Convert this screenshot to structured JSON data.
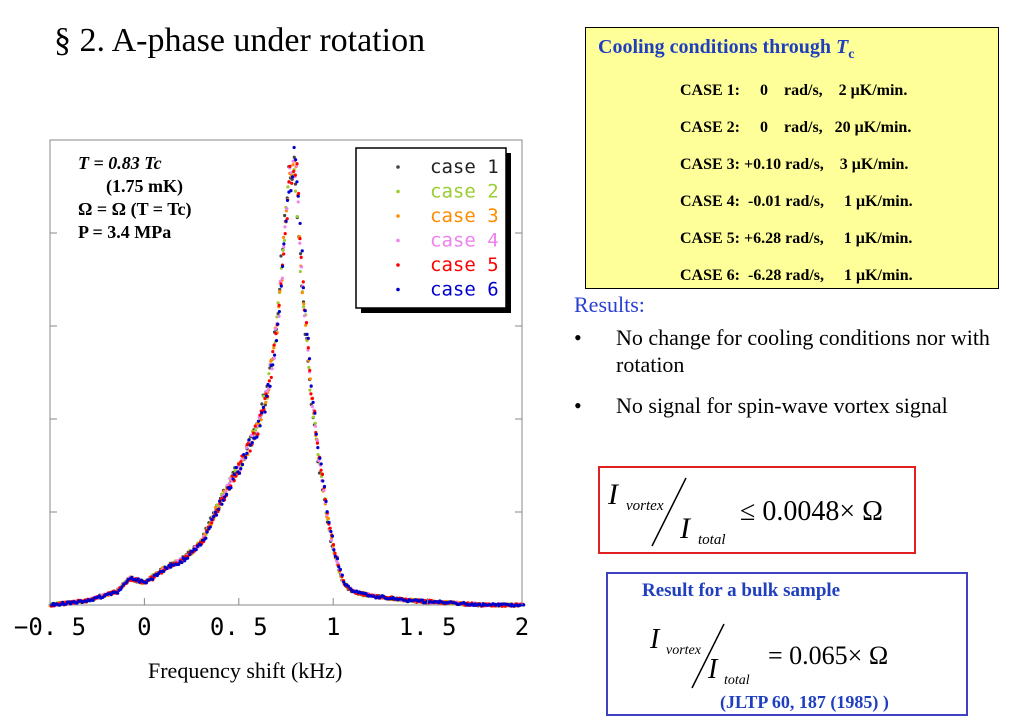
{
  "title": "§ 2.  A-phase under rotation",
  "cooling": {
    "title_text": "Cooling conditions through ",
    "title_var": "T",
    "title_sub": "c",
    "cases": [
      "CASE 1:     0    rad/s,    2 μK/min.",
      "CASE 2:     0    rad/s,   20 μK/min.",
      "CASE 3: +0.10 rad/s,    3 μK/min.",
      "CASE 4:  -0.01 rad/s,     1 μK/min.",
      "CASE 5: +6.28 rad/s,     1 μK/min.",
      "CASE 6:  -6.28 rad/s,     1 μK/min."
    ]
  },
  "params": {
    "line1": "T  = 0.83 Tc",
    "line2": "(1.75 mK)",
    "line3": "Ω = Ω (T = Tc)",
    "line4": "P = 3.4 MPa"
  },
  "results": {
    "title": "Results:",
    "bullet_char": "•",
    "bullets": [
      "No change for cooling conditions nor with rotation",
      "No signal for spin-wave vortex signal"
    ]
  },
  "equation1": {
    "num": "I",
    "num_sub": "vortex",
    "den": "I",
    "den_sub": "total",
    "rhs": "≤ 0.0048× Ω"
  },
  "bulk": {
    "title": "Result for a bulk sample",
    "num": "I",
    "num_sub": "vortex",
    "den": "I",
    "den_sub": "total",
    "rhs": "= 0.065× Ω",
    "ref": "(JLTP 60, 187 (1985) )"
  },
  "chart_data": {
    "type": "scatter",
    "xlabel": "Frequency shift (kHz)",
    "ylabel": "",
    "xlim": [
      -0.5,
      2.0
    ],
    "ylim": [
      0,
      1.0
    ],
    "x_ticks": [
      "−0. 5",
      "0",
      "0. 5",
      "1",
      "1. 5",
      "2"
    ],
    "x_tick_values": [
      -0.5,
      0,
      0.5,
      1,
      1.5,
      2
    ],
    "grid": false,
    "legend_position": "top-right",
    "series": [
      {
        "name": "case 1",
        "color": "#444444"
      },
      {
        "name": "case 2",
        "color": "#9acd32"
      },
      {
        "name": "case 3",
        "color": "#ff8c00"
      },
      {
        "name": "case 4",
        "color": "#ee82ee"
      },
      {
        "name": "case 5",
        "color": "#ff0000"
      },
      {
        "name": "case 6",
        "color": "#0000cc"
      }
    ],
    "x": [
      -0.5,
      -0.3,
      -0.15,
      -0.08,
      0.0,
      0.1,
      0.2,
      0.3,
      0.4,
      0.5,
      0.6,
      0.65,
      0.7,
      0.73,
      0.76,
      0.78,
      0.8,
      0.82,
      0.85,
      0.88,
      0.92,
      0.96,
      1.0,
      1.05,
      1.1,
      1.2,
      1.4,
      1.6,
      1.8,
      2.0
    ],
    "y": [
      0.0,
      0.01,
      0.03,
      0.06,
      0.05,
      0.08,
      0.1,
      0.14,
      0.23,
      0.31,
      0.4,
      0.48,
      0.62,
      0.78,
      0.93,
      0.99,
      0.95,
      0.8,
      0.63,
      0.47,
      0.33,
      0.21,
      0.12,
      0.05,
      0.03,
      0.02,
      0.01,
      0.005,
      0.0,
      0.0
    ]
  }
}
